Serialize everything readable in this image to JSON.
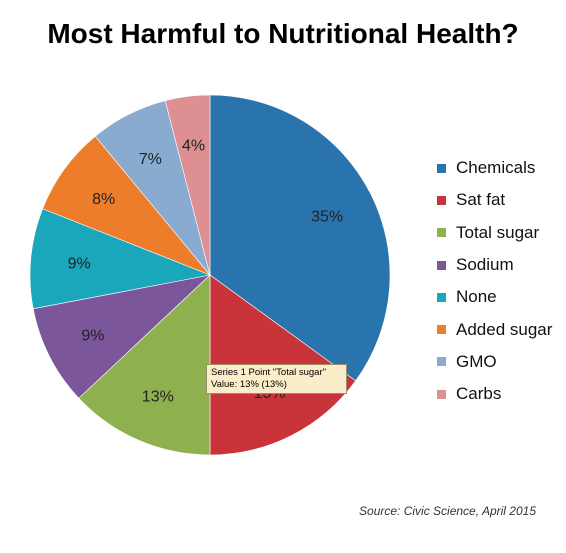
{
  "title": "Most Harmful to Nutritional Health?",
  "source": "Source: Civic Science, April 2015",
  "tooltip": {
    "line1": "Series 1 Point \"Total sugar\"",
    "line2": "Value: 13% (13%)"
  },
  "chart_data": {
    "type": "pie",
    "title": "Most Harmful to Nutritional Health?",
    "legend_position": "right",
    "categories": [
      "Chemicals",
      "Sat fat",
      "Total sugar",
      "Sodium",
      "None",
      "Added sugar",
      "GMO",
      "Carbs"
    ],
    "values": [
      35,
      15,
      13,
      9,
      9,
      8,
      7,
      4
    ],
    "data_labels": [
      "35%",
      "15%",
      "13%",
      "9%",
      "9%",
      "8%",
      "7%",
      "4%"
    ],
    "colors": [
      "#2a74ad",
      "#c8343a",
      "#8fb04e",
      "#7b569a",
      "#1aa6bb",
      "#ed7d2b",
      "#8aabd0",
      "#dd8f91"
    ]
  }
}
